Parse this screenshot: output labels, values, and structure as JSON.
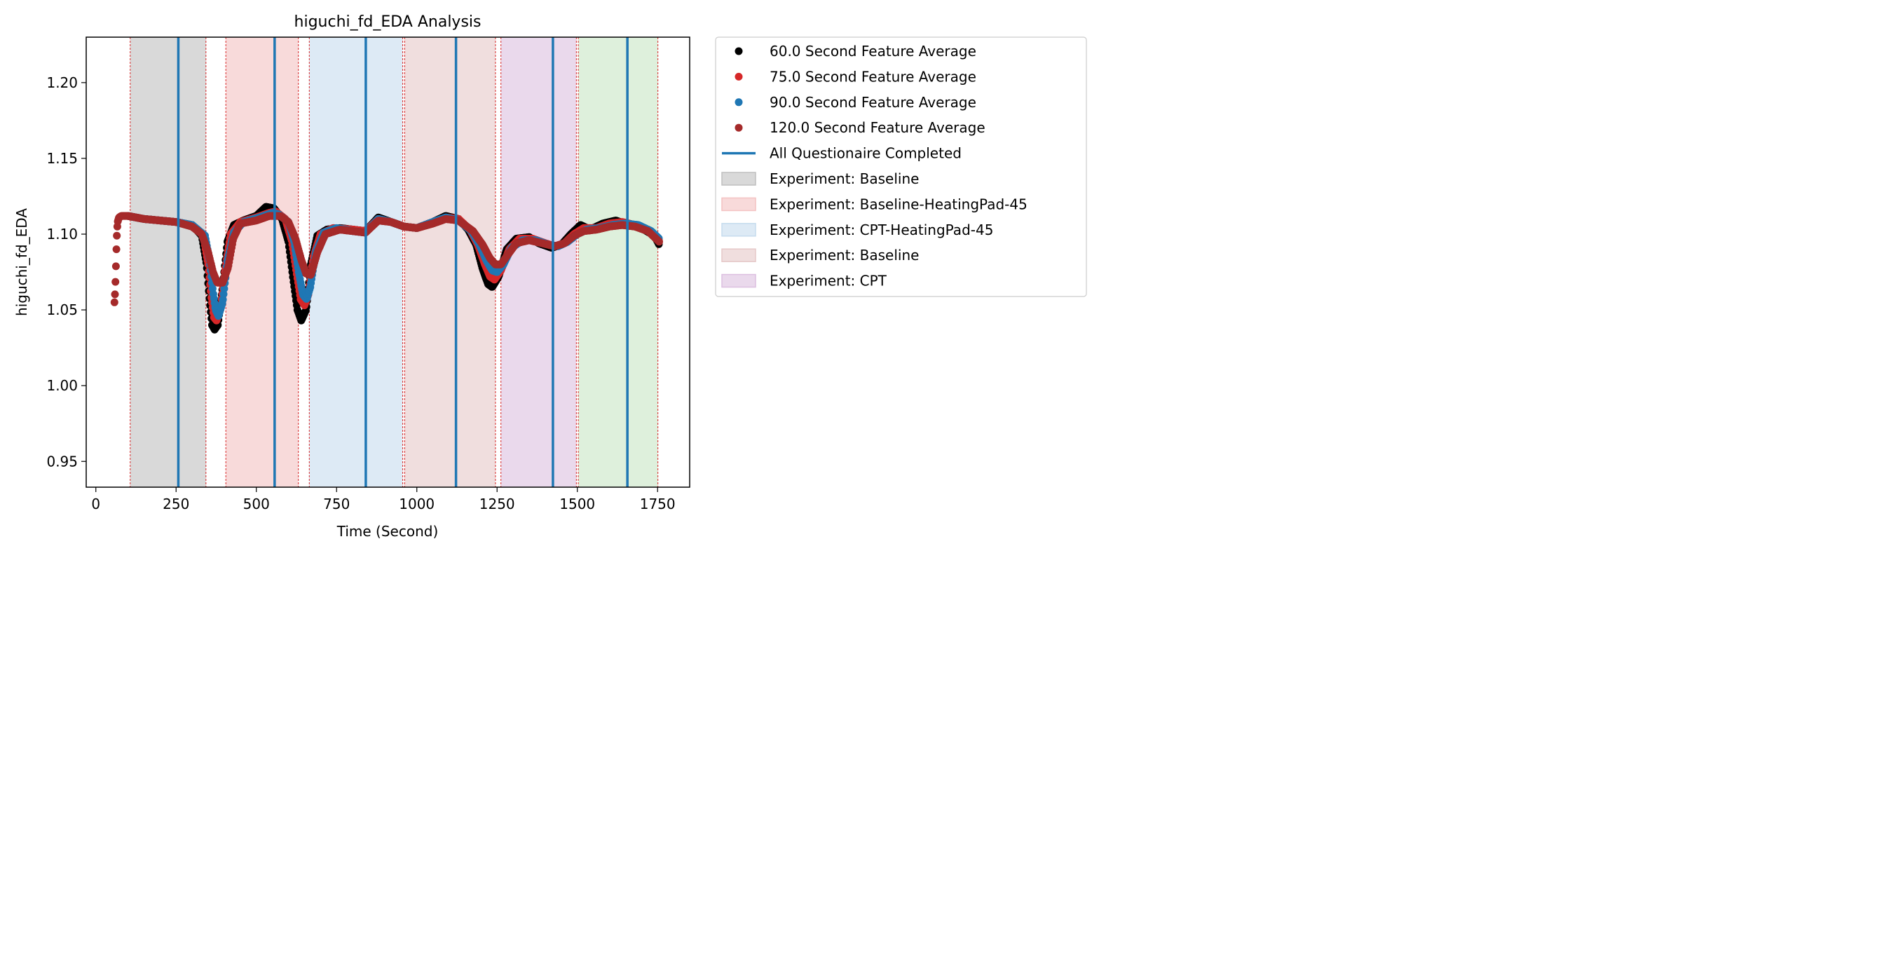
{
  "chart_data": {
    "type": "scatter",
    "title": "higuchi_fd_EDA Analysis",
    "xlabel": "Time (Second)",
    "ylabel": "higuchi_fd_EDA",
    "xlim": [
      -30,
      1850
    ],
    "ylim": [
      0.933,
      1.23
    ],
    "xticks": [
      0,
      250,
      500,
      750,
      1000,
      1250,
      1500,
      1750
    ],
    "yticks": [
      0.95,
      1.0,
      1.05,
      1.1,
      1.15,
      1.2
    ],
    "ytick_labels": [
      "0.95",
      "1.00",
      "1.05",
      "1.10",
      "1.15",
      "1.20"
    ],
    "grid": false,
    "legend_position": "outside-right",
    "series": [
      {
        "name": "60.0 Second Feature Average",
        "color": "#000000",
        "start": 100,
        "points": [
          [
            100,
            1.112
          ],
          [
            150,
            1.11
          ],
          [
            200,
            1.109
          ],
          [
            250,
            1.108
          ],
          [
            300,
            1.106
          ],
          [
            330,
            1.099
          ],
          [
            345,
            1.08
          ],
          [
            355,
            1.055
          ],
          [
            362,
            1.04
          ],
          [
            370,
            1.037
          ],
          [
            380,
            1.04
          ],
          [
            395,
            1.065
          ],
          [
            410,
            1.095
          ],
          [
            430,
            1.106
          ],
          [
            460,
            1.109
          ],
          [
            500,
            1.112
          ],
          [
            530,
            1.118
          ],
          [
            555,
            1.117
          ],
          [
            580,
            1.11
          ],
          [
            600,
            1.095
          ],
          [
            615,
            1.07
          ],
          [
            628,
            1.05
          ],
          [
            640,
            1.043
          ],
          [
            655,
            1.05
          ],
          [
            670,
            1.08
          ],
          [
            690,
            1.099
          ],
          [
            720,
            1.103
          ],
          [
            760,
            1.104
          ],
          [
            800,
            1.103
          ],
          [
            840,
            1.102
          ],
          [
            880,
            1.111
          ],
          [
            920,
            1.108
          ],
          [
            960,
            1.105
          ],
          [
            1000,
            1.104
          ],
          [
            1050,
            1.108
          ],
          [
            1090,
            1.112
          ],
          [
            1130,
            1.11
          ],
          [
            1160,
            1.103
          ],
          [
            1185,
            1.093
          ],
          [
            1205,
            1.077
          ],
          [
            1222,
            1.067
          ],
          [
            1235,
            1.065
          ],
          [
            1255,
            1.072
          ],
          [
            1280,
            1.09
          ],
          [
            1310,
            1.097
          ],
          [
            1350,
            1.098
          ],
          [
            1380,
            1.094
          ],
          [
            1420,
            1.091
          ],
          [
            1450,
            1.093
          ],
          [
            1480,
            1.1
          ],
          [
            1510,
            1.106
          ],
          [
            1540,
            1.103
          ],
          [
            1580,
            1.107
          ],
          [
            1620,
            1.109
          ],
          [
            1660,
            1.106
          ],
          [
            1700,
            1.104
          ],
          [
            1740,
            1.099
          ],
          [
            1755,
            1.093
          ]
        ]
      },
      {
        "name": "75.0 Second Feature Average",
        "color": "#d62728",
        "start": 100,
        "points": [
          [
            100,
            1.112
          ],
          [
            150,
            1.11
          ],
          [
            200,
            1.109
          ],
          [
            250,
            1.108
          ],
          [
            300,
            1.106
          ],
          [
            335,
            1.099
          ],
          [
            350,
            1.08
          ],
          [
            360,
            1.058
          ],
          [
            368,
            1.045
          ],
          [
            376,
            1.043
          ],
          [
            388,
            1.05
          ],
          [
            402,
            1.075
          ],
          [
            420,
            1.1
          ],
          [
            450,
            1.108
          ],
          [
            500,
            1.111
          ],
          [
            540,
            1.114
          ],
          [
            560,
            1.115
          ],
          [
            590,
            1.11
          ],
          [
            610,
            1.096
          ],
          [
            625,
            1.075
          ],
          [
            638,
            1.057
          ],
          [
            650,
            1.053
          ],
          [
            662,
            1.06
          ],
          [
            678,
            1.085
          ],
          [
            700,
            1.1
          ],
          [
            740,
            1.104
          ],
          [
            800,
            1.103
          ],
          [
            840,
            1.102
          ],
          [
            880,
            1.11
          ],
          [
            920,
            1.108
          ],
          [
            960,
            1.105
          ],
          [
            1000,
            1.104
          ],
          [
            1050,
            1.108
          ],
          [
            1090,
            1.111
          ],
          [
            1130,
            1.11
          ],
          [
            1165,
            1.103
          ],
          [
            1190,
            1.093
          ],
          [
            1212,
            1.08
          ],
          [
            1228,
            1.072
          ],
          [
            1242,
            1.07
          ],
          [
            1262,
            1.076
          ],
          [
            1288,
            1.09
          ],
          [
            1320,
            1.097
          ],
          [
            1360,
            1.097
          ],
          [
            1400,
            1.094
          ],
          [
            1430,
            1.092
          ],
          [
            1460,
            1.094
          ],
          [
            1490,
            1.1
          ],
          [
            1520,
            1.104
          ],
          [
            1560,
            1.104
          ],
          [
            1600,
            1.107
          ],
          [
            1640,
            1.108
          ],
          [
            1680,
            1.106
          ],
          [
            1720,
            1.103
          ],
          [
            1755,
            1.096
          ]
        ]
      },
      {
        "name": "90.0 Second Feature Average",
        "color": "#1f77b4",
        "start": 100,
        "points": [
          [
            100,
            1.112
          ],
          [
            150,
            1.11
          ],
          [
            200,
            1.109
          ],
          [
            250,
            1.108
          ],
          [
            300,
            1.106
          ],
          [
            340,
            1.099
          ],
          [
            355,
            1.082
          ],
          [
            365,
            1.062
          ],
          [
            373,
            1.05
          ],
          [
            382,
            1.046
          ],
          [
            395,
            1.055
          ],
          [
            410,
            1.082
          ],
          [
            430,
            1.101
          ],
          [
            460,
            1.108
          ],
          [
            510,
            1.111
          ],
          [
            550,
            1.114
          ],
          [
            570,
            1.113
          ],
          [
            600,
            1.108
          ],
          [
            618,
            1.095
          ],
          [
            632,
            1.075
          ],
          [
            645,
            1.06
          ],
          [
            657,
            1.057
          ],
          [
            668,
            1.065
          ],
          [
            685,
            1.088
          ],
          [
            710,
            1.101
          ],
          [
            750,
            1.104
          ],
          [
            800,
            1.102
          ],
          [
            840,
            1.101
          ],
          [
            880,
            1.11
          ],
          [
            920,
            1.108
          ],
          [
            960,
            1.105
          ],
          [
            1000,
            1.104
          ],
          [
            1050,
            1.108
          ],
          [
            1090,
            1.111
          ],
          [
            1130,
            1.109
          ],
          [
            1170,
            1.102
          ],
          [
            1195,
            1.093
          ],
          [
            1218,
            1.082
          ],
          [
            1235,
            1.076
          ],
          [
            1250,
            1.075
          ],
          [
            1270,
            1.08
          ],
          [
            1295,
            1.091
          ],
          [
            1330,
            1.096
          ],
          [
            1370,
            1.096
          ],
          [
            1410,
            1.093
          ],
          [
            1440,
            1.092
          ],
          [
            1470,
            1.095
          ],
          [
            1500,
            1.1
          ],
          [
            1530,
            1.103
          ],
          [
            1570,
            1.104
          ],
          [
            1610,
            1.106
          ],
          [
            1650,
            1.107
          ],
          [
            1690,
            1.106
          ],
          [
            1730,
            1.102
          ],
          [
            1755,
            1.097
          ]
        ]
      },
      {
        "name": "120.0 Second Feature Average",
        "color": "#a52a2a",
        "start": 58,
        "points": [
          [
            58,
            1.055
          ],
          [
            60,
            1.062
          ],
          [
            62,
            1.075
          ],
          [
            64,
            1.09
          ],
          [
            66,
            1.102
          ],
          [
            68,
            1.108
          ],
          [
            72,
            1.111
          ],
          [
            80,
            1.112
          ],
          [
            100,
            1.112
          ],
          [
            150,
            1.11
          ],
          [
            200,
            1.109
          ],
          [
            250,
            1.108
          ],
          [
            300,
            1.105
          ],
          [
            330,
            1.1
          ],
          [
            350,
            1.088
          ],
          [
            365,
            1.075
          ],
          [
            378,
            1.068
          ],
          [
            395,
            1.068
          ],
          [
            412,
            1.078
          ],
          [
            428,
            1.097
          ],
          [
            450,
            1.107
          ],
          [
            500,
            1.109
          ],
          [
            540,
            1.112
          ],
          [
            575,
            1.112
          ],
          [
            600,
            1.108
          ],
          [
            622,
            1.097
          ],
          [
            640,
            1.083
          ],
          [
            655,
            1.074
          ],
          [
            670,
            1.073
          ],
          [
            690,
            1.088
          ],
          [
            715,
            1.1
          ],
          [
            760,
            1.103
          ],
          [
            800,
            1.102
          ],
          [
            840,
            1.101
          ],
          [
            880,
            1.109
          ],
          [
            920,
            1.108
          ],
          [
            960,
            1.105
          ],
          [
            1000,
            1.104
          ],
          [
            1050,
            1.107
          ],
          [
            1090,
            1.11
          ],
          [
            1130,
            1.109
          ],
          [
            1175,
            1.102
          ],
          [
            1205,
            1.093
          ],
          [
            1228,
            1.084
          ],
          [
            1245,
            1.08
          ],
          [
            1262,
            1.08
          ],
          [
            1282,
            1.086
          ],
          [
            1310,
            1.094
          ],
          [
            1350,
            1.096
          ],
          [
            1390,
            1.094
          ],
          [
            1430,
            1.092
          ],
          [
            1460,
            1.094
          ],
          [
            1490,
            1.099
          ],
          [
            1520,
            1.102
          ],
          [
            1560,
            1.103
          ],
          [
            1600,
            1.105
          ],
          [
            1640,
            1.106
          ],
          [
            1680,
            1.105
          ],
          [
            1720,
            1.102
          ],
          [
            1755,
            1.095
          ]
        ]
      }
    ],
    "questionnaire": {
      "name": "All Questionaire Completed",
      "color": "#1f77b4",
      "x": [
        257,
        557,
        841,
        1122,
        1424,
        1656
      ]
    },
    "experiments": [
      {
        "name": "Experiment: Baseline",
        "start": 107,
        "end": 343,
        "color": "#bfbfbf",
        "in_legend": true
      },
      {
        "name": "Experiment: Baseline-HeatingPad-45",
        "start": 405,
        "end": 631,
        "color": "#f4c2c2",
        "in_legend": true
      },
      {
        "name": "Experiment: CPT-HeatingPad-45",
        "start": 665,
        "end": 956,
        "color": "#c6dcee",
        "in_legend": true
      },
      {
        "name": "Experiment: Baseline",
        "start": 962,
        "end": 1245,
        "color": "#e6c8c8",
        "in_legend": true
      },
      {
        "name": "Experiment: CPT",
        "start": 1262,
        "end": 1497,
        "color": "#dcbfe0",
        "in_legend": true
      },
      {
        "name": "",
        "start": 1503,
        "end": 1751,
        "color": "#c8e6c4",
        "in_legend": false
      }
    ]
  }
}
